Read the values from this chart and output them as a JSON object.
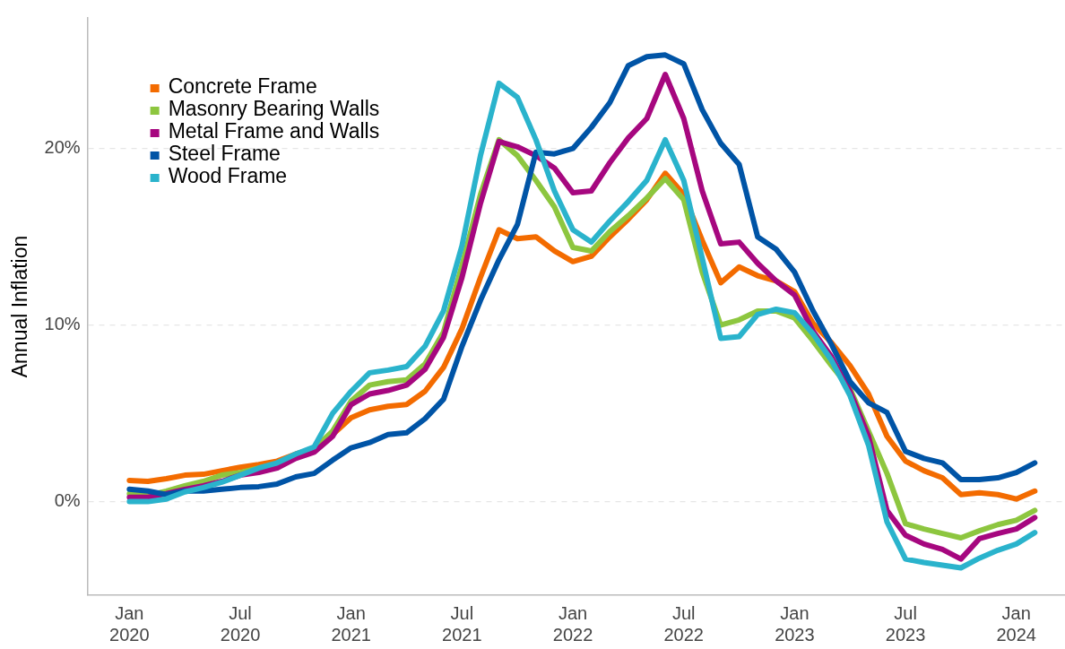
{
  "chart_data": {
    "type": "line",
    "ylabel": "Annual Inflation",
    "x": [
      "2020-01",
      "2020-02",
      "2020-03",
      "2020-04",
      "2020-05",
      "2020-06",
      "2020-07",
      "2020-08",
      "2020-09",
      "2020-10",
      "2020-11",
      "2020-12",
      "2021-01",
      "2021-02",
      "2021-03",
      "2021-04",
      "2021-05",
      "2021-06",
      "2021-07",
      "2021-08",
      "2021-09",
      "2021-10",
      "2021-11",
      "2021-12",
      "2022-01",
      "2022-02",
      "2022-03",
      "2022-04",
      "2022-05",
      "2022-06",
      "2022-07",
      "2022-08",
      "2022-09",
      "2022-10",
      "2022-11",
      "2022-12",
      "2023-01",
      "2023-02",
      "2023-03",
      "2023-04",
      "2023-05",
      "2023-06",
      "2023-07",
      "2023-08",
      "2023-09",
      "2023-10",
      "2023-11",
      "2023-12",
      "2024-01",
      "2024-02"
    ],
    "series": [
      {
        "name": "Concrete Frame",
        "color": "#f36b00",
        "values": [
          1.2,
          1.15,
          1.3,
          1.5,
          1.55,
          1.75,
          1.95,
          2.1,
          2.3,
          2.7,
          3.0,
          3.8,
          4.75,
          5.2,
          5.4,
          5.5,
          6.25,
          7.6,
          9.8,
          12.7,
          15.4,
          14.9,
          15.0,
          14.2,
          13.6,
          13.9,
          15.0,
          16.0,
          17.1,
          18.6,
          17.4,
          14.8,
          12.4,
          13.3,
          12.8,
          12.5,
          11.9,
          10.1,
          9.0,
          7.7,
          6.1,
          3.7,
          2.3,
          1.75,
          1.35,
          0.4,
          0.5,
          0.4,
          0.15,
          0.6
        ]
      },
      {
        "name": "Masonry Bearing Walls",
        "color": "#8dc63f",
        "values": [
          0.45,
          0.35,
          0.6,
          0.9,
          1.15,
          1.5,
          1.65,
          1.9,
          2.15,
          2.6,
          3.0,
          4.0,
          5.7,
          6.6,
          6.8,
          6.9,
          7.8,
          9.6,
          13.4,
          17.4,
          20.5,
          19.6,
          18.2,
          16.7,
          14.4,
          14.2,
          15.3,
          16.2,
          17.2,
          18.3,
          17.1,
          13.0,
          10.0,
          10.3,
          10.8,
          10.8,
          10.4,
          9.1,
          7.7,
          6.4,
          4.0,
          1.6,
          -1.25,
          -1.55,
          -1.8,
          -2.05,
          -1.65,
          -1.3,
          -1.05,
          -0.5
        ]
      },
      {
        "name": "Metal Frame and Walls",
        "color": "#a6077f",
        "values": [
          0.25,
          0.25,
          0.45,
          0.7,
          0.9,
          1.15,
          1.5,
          1.65,
          1.9,
          2.45,
          2.8,
          3.7,
          5.5,
          6.1,
          6.3,
          6.6,
          7.5,
          9.3,
          12.7,
          16.9,
          20.4,
          20.1,
          19.6,
          18.9,
          17.5,
          17.6,
          19.2,
          20.6,
          21.7,
          24.2,
          21.7,
          17.6,
          14.6,
          14.7,
          13.5,
          12.5,
          11.7,
          9.65,
          8.2,
          6.25,
          3.7,
          -0.5,
          -1.9,
          -2.4,
          -2.7,
          -3.25,
          -2.1,
          -1.8,
          -1.55,
          -0.9
        ]
      },
      {
        "name": "Steel Frame",
        "color": "#0054a6",
        "values": [
          0.7,
          0.6,
          0.4,
          0.6,
          0.6,
          0.7,
          0.8,
          0.85,
          1.0,
          1.4,
          1.6,
          2.35,
          3.05,
          3.35,
          3.8,
          3.9,
          4.7,
          5.8,
          8.8,
          11.4,
          13.7,
          15.7,
          19.8,
          19.7,
          20.0,
          21.2,
          22.6,
          24.7,
          25.2,
          25.3,
          24.8,
          22.2,
          20.3,
          19.1,
          15.0,
          14.3,
          13.0,
          10.8,
          8.9,
          6.8,
          5.6,
          5.05,
          2.85,
          2.45,
          2.2,
          1.25,
          1.25,
          1.35,
          1.65,
          2.2
        ]
      },
      {
        "name": "Wood Frame",
        "color": "#2ab3cc",
        "values": [
          0,
          0,
          0.15,
          0.55,
          0.8,
          1.1,
          1.5,
          1.9,
          2.2,
          2.7,
          3.1,
          5.0,
          6.25,
          7.3,
          7.45,
          7.65,
          8.8,
          10.8,
          14.5,
          19.6,
          23.7,
          22.9,
          20.5,
          17.6,
          15.4,
          14.7,
          15.9,
          17.0,
          18.2,
          20.5,
          18.2,
          13.8,
          9.25,
          9.35,
          10.6,
          10.9,
          10.7,
          9.5,
          8.0,
          6.0,
          3.2,
          -1.15,
          -3.25,
          -3.45,
          -3.6,
          -3.75,
          -3.2,
          -2.75,
          -2.4,
          -1.75
        ]
      }
    ],
    "xlim": [
      "2019-10-23",
      "2024-03-20"
    ],
    "xticks": [
      {
        "value": "2020-01",
        "label": "Jan 2020"
      },
      {
        "value": "2020-07",
        "label": "Jul 2020"
      },
      {
        "value": "2021-01",
        "label": "Jan 2021"
      },
      {
        "value": "2021-07",
        "label": "Jul 2021"
      },
      {
        "value": "2022-01",
        "label": "Jan 2022"
      },
      {
        "value": "2022-07",
        "label": "Jul 2022"
      },
      {
        "value": "2023-01",
        "label": "Jan 2023"
      },
      {
        "value": "2023-07",
        "label": "Jul 2023"
      },
      {
        "value": "2024-01",
        "label": "Jan 2024"
      }
    ],
    "ylim": [
      -5.3,
      27.4
    ],
    "yticks": [
      {
        "value": 0,
        "label": "0%"
      },
      {
        "value": 10,
        "label": "10%"
      },
      {
        "value": 20,
        "label": "20%"
      }
    ],
    "grid": "y",
    "legend": "top left",
    "marker": "none",
    "line_style": "solid"
  }
}
